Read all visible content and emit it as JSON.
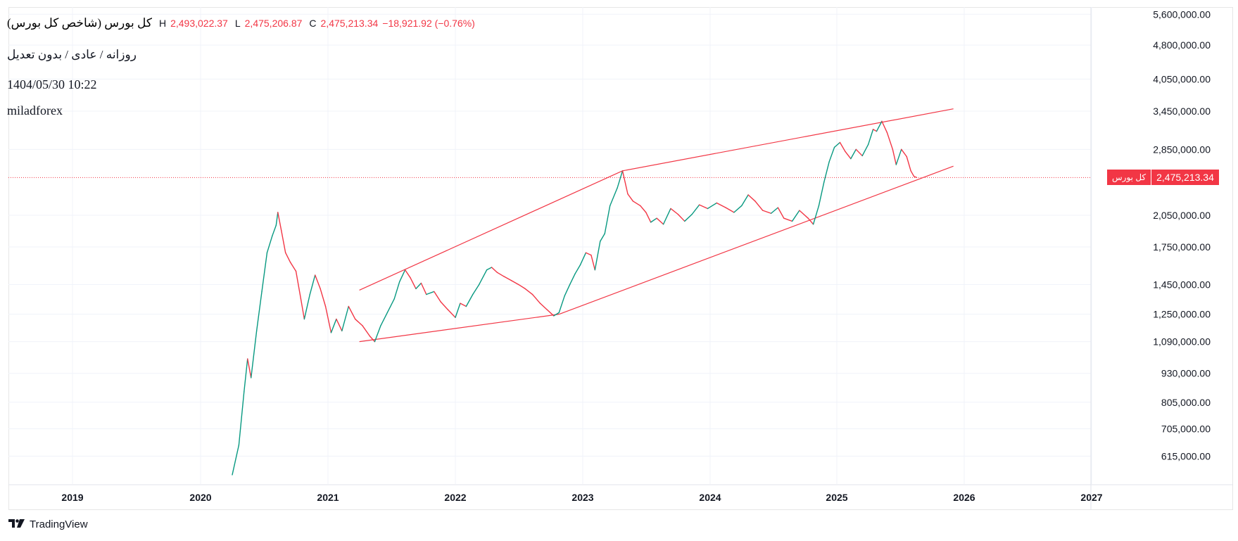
{
  "header": {
    "title": "کل بورس (شاخص کل بورس)",
    "high_label": "H",
    "high_value": "2,493,022.37",
    "low_label": "L",
    "low_value": "2,475,206.87",
    "close_label": "C",
    "close_value": "2,475,213.34",
    "change": "−18,921.92 (−0.76%)",
    "meta": "روزانه / عادی / بدون تعدیل",
    "datetime": "1404/05/30 10:22",
    "author": "miladforex"
  },
  "price_badge": {
    "name": "کل بورس",
    "value": "2,475,213.34",
    "color": "#f23645"
  },
  "brand": {
    "name": "TradingView"
  },
  "colors": {
    "up": "#089981",
    "down": "#f23645",
    "trendline": "#f23645",
    "grid": "#f0f3fa",
    "axis_text": "#131722"
  },
  "chart_data": {
    "type": "line",
    "scale": "log",
    "y_axis_labels": [
      "5,600,000.00",
      "4,800,000.00",
      "4,050,000.00",
      "3,450,000.00",
      "2,850,000.00",
      "2,050,000.00",
      "1,750,000.00",
      "1,450,000.00",
      "1,250,000.00",
      "1,090,000.00",
      "930,000.00",
      "805,000.00",
      "705,000.00",
      "615,000.00"
    ],
    "y_axis_values": [
      5600000,
      4800000,
      4050000,
      3450000,
      2850000,
      2050000,
      1750000,
      1450000,
      1250000,
      1090000,
      930000,
      805000,
      705000,
      615000
    ],
    "x_axis_labels": [
      "2019",
      "2020",
      "2021",
      "2022",
      "2023",
      "2024",
      "2025",
      "2026",
      "2027"
    ],
    "last_price": 2475213.34,
    "series": [
      {
        "points": [
          [
            "2020-04-01",
            560000
          ],
          [
            "2020-04-20",
            650000
          ],
          [
            "2020-05-05",
            850000
          ],
          [
            "2020-05-15",
            1000000
          ],
          [
            "2020-05-25",
            910000
          ],
          [
            "2020-06-10",
            1150000
          ],
          [
            "2020-06-25",
            1400000
          ],
          [
            "2020-07-10",
            1700000
          ],
          [
            "2020-07-25",
            1850000
          ],
          [
            "2020-08-05",
            1950000
          ],
          [
            "2020-08-10",
            2080000
          ],
          [
            "2020-08-20",
            1900000
          ],
          [
            "2020-09-01",
            1700000
          ],
          [
            "2020-09-15",
            1620000
          ],
          [
            "2020-10-01",
            1550000
          ],
          [
            "2020-10-15",
            1350000
          ],
          [
            "2020-10-25",
            1220000
          ],
          [
            "2020-11-10",
            1380000
          ],
          [
            "2020-11-25",
            1520000
          ],
          [
            "2020-12-10",
            1420000
          ],
          [
            "2020-12-25",
            1300000
          ],
          [
            "2021-01-10",
            1140000
          ],
          [
            "2021-01-25",
            1220000
          ],
          [
            "2021-02-10",
            1150000
          ],
          [
            "2021-03-01",
            1300000
          ],
          [
            "2021-03-20",
            1220000
          ],
          [
            "2021-04-10",
            1180000
          ],
          [
            "2021-05-01",
            1120000
          ],
          [
            "2021-05-15",
            1090000
          ],
          [
            "2021-06-01",
            1180000
          ],
          [
            "2021-06-20",
            1260000
          ],
          [
            "2021-07-10",
            1350000
          ],
          [
            "2021-07-25",
            1470000
          ],
          [
            "2021-08-10",
            1560000
          ],
          [
            "2021-08-25",
            1500000
          ],
          [
            "2021-09-10",
            1420000
          ],
          [
            "2021-09-25",
            1460000
          ],
          [
            "2021-10-10",
            1380000
          ],
          [
            "2021-11-01",
            1400000
          ],
          [
            "2021-11-20",
            1330000
          ],
          [
            "2021-12-10",
            1280000
          ],
          [
            "2022-01-01",
            1230000
          ],
          [
            "2022-01-15",
            1320000
          ],
          [
            "2022-02-01",
            1300000
          ],
          [
            "2022-02-20",
            1380000
          ],
          [
            "2022-03-10",
            1450000
          ],
          [
            "2022-04-01",
            1560000
          ],
          [
            "2022-04-15",
            1580000
          ],
          [
            "2022-05-01",
            1540000
          ],
          [
            "2022-05-20",
            1510000
          ],
          [
            "2022-06-10",
            1480000
          ],
          [
            "2022-07-01",
            1450000
          ],
          [
            "2022-07-20",
            1420000
          ],
          [
            "2022-08-10",
            1380000
          ],
          [
            "2022-09-01",
            1320000
          ],
          [
            "2022-09-20",
            1280000
          ],
          [
            "2022-10-10",
            1240000
          ],
          [
            "2022-10-25",
            1260000
          ],
          [
            "2022-11-10",
            1370000
          ],
          [
            "2022-11-25",
            1450000
          ],
          [
            "2022-12-10",
            1530000
          ],
          [
            "2022-12-25",
            1600000
          ],
          [
            "2023-01-10",
            1700000
          ],
          [
            "2023-01-25",
            1680000
          ],
          [
            "2023-02-05",
            1560000
          ],
          [
            "2023-02-20",
            1800000
          ],
          [
            "2023-03-05",
            1870000
          ],
          [
            "2023-03-20",
            2150000
          ],
          [
            "2023-04-10",
            2350000
          ],
          [
            "2023-04-25",
            2560000
          ],
          [
            "2023-05-10",
            2280000
          ],
          [
            "2023-05-25",
            2200000
          ],
          [
            "2023-06-15",
            2150000
          ],
          [
            "2023-07-01",
            2080000
          ],
          [
            "2023-07-15",
            1980000
          ],
          [
            "2023-08-01",
            2020000
          ],
          [
            "2023-08-20",
            1960000
          ],
          [
            "2023-09-10",
            2120000
          ],
          [
            "2023-10-01",
            2060000
          ],
          [
            "2023-10-20",
            1990000
          ],
          [
            "2023-11-10",
            2060000
          ],
          [
            "2023-12-01",
            2160000
          ],
          [
            "2023-12-25",
            2120000
          ],
          [
            "2024-01-20",
            2180000
          ],
          [
            "2024-02-15",
            2130000
          ],
          [
            "2024-03-10",
            2080000
          ],
          [
            "2024-04-01",
            2150000
          ],
          [
            "2024-04-20",
            2270000
          ],
          [
            "2024-05-10",
            2200000
          ],
          [
            "2024-06-01",
            2100000
          ],
          [
            "2024-06-25",
            2070000
          ],
          [
            "2024-07-15",
            2130000
          ],
          [
            "2024-08-01",
            2020000
          ],
          [
            "2024-08-25",
            1990000
          ],
          [
            "2024-09-15",
            2100000
          ],
          [
            "2024-10-10",
            2020000
          ],
          [
            "2024-10-25",
            1960000
          ],
          [
            "2024-11-10",
            2150000
          ],
          [
            "2024-11-25",
            2420000
          ],
          [
            "2024-12-10",
            2680000
          ],
          [
            "2024-12-25",
            2880000
          ],
          [
            "2025-01-10",
            2950000
          ],
          [
            "2025-01-25",
            2820000
          ],
          [
            "2025-02-10",
            2720000
          ],
          [
            "2025-02-25",
            2850000
          ],
          [
            "2025-03-15",
            2760000
          ],
          [
            "2025-04-01",
            2920000
          ],
          [
            "2025-04-15",
            3150000
          ],
          [
            "2025-04-25",
            3120000
          ],
          [
            "2025-05-10",
            3280000
          ],
          [
            "2025-05-25",
            3100000
          ],
          [
            "2025-06-10",
            2850000
          ],
          [
            "2025-06-20",
            2640000
          ],
          [
            "2025-07-05",
            2850000
          ],
          [
            "2025-07-20",
            2750000
          ],
          [
            "2025-08-01",
            2560000
          ],
          [
            "2025-08-10",
            2490000
          ],
          [
            "2025-08-18",
            2475213
          ]
        ]
      }
    ],
    "trendlines": [
      {
        "from": [
          "2021-04-01",
          1410000
        ],
        "to": [
          "2023-04-25",
          2560000
        ]
      },
      {
        "from": [
          "2023-04-25",
          2560000
        ],
        "to": [
          "2025-12-01",
          3490000
        ]
      },
      {
        "from": [
          "2021-04-01",
          1090000
        ],
        "to": [
          "2022-10-25",
          1250000
        ]
      },
      {
        "from": [
          "2022-10-25",
          1250000
        ],
        "to": [
          "2025-12-01",
          2620000
        ]
      }
    ]
  }
}
